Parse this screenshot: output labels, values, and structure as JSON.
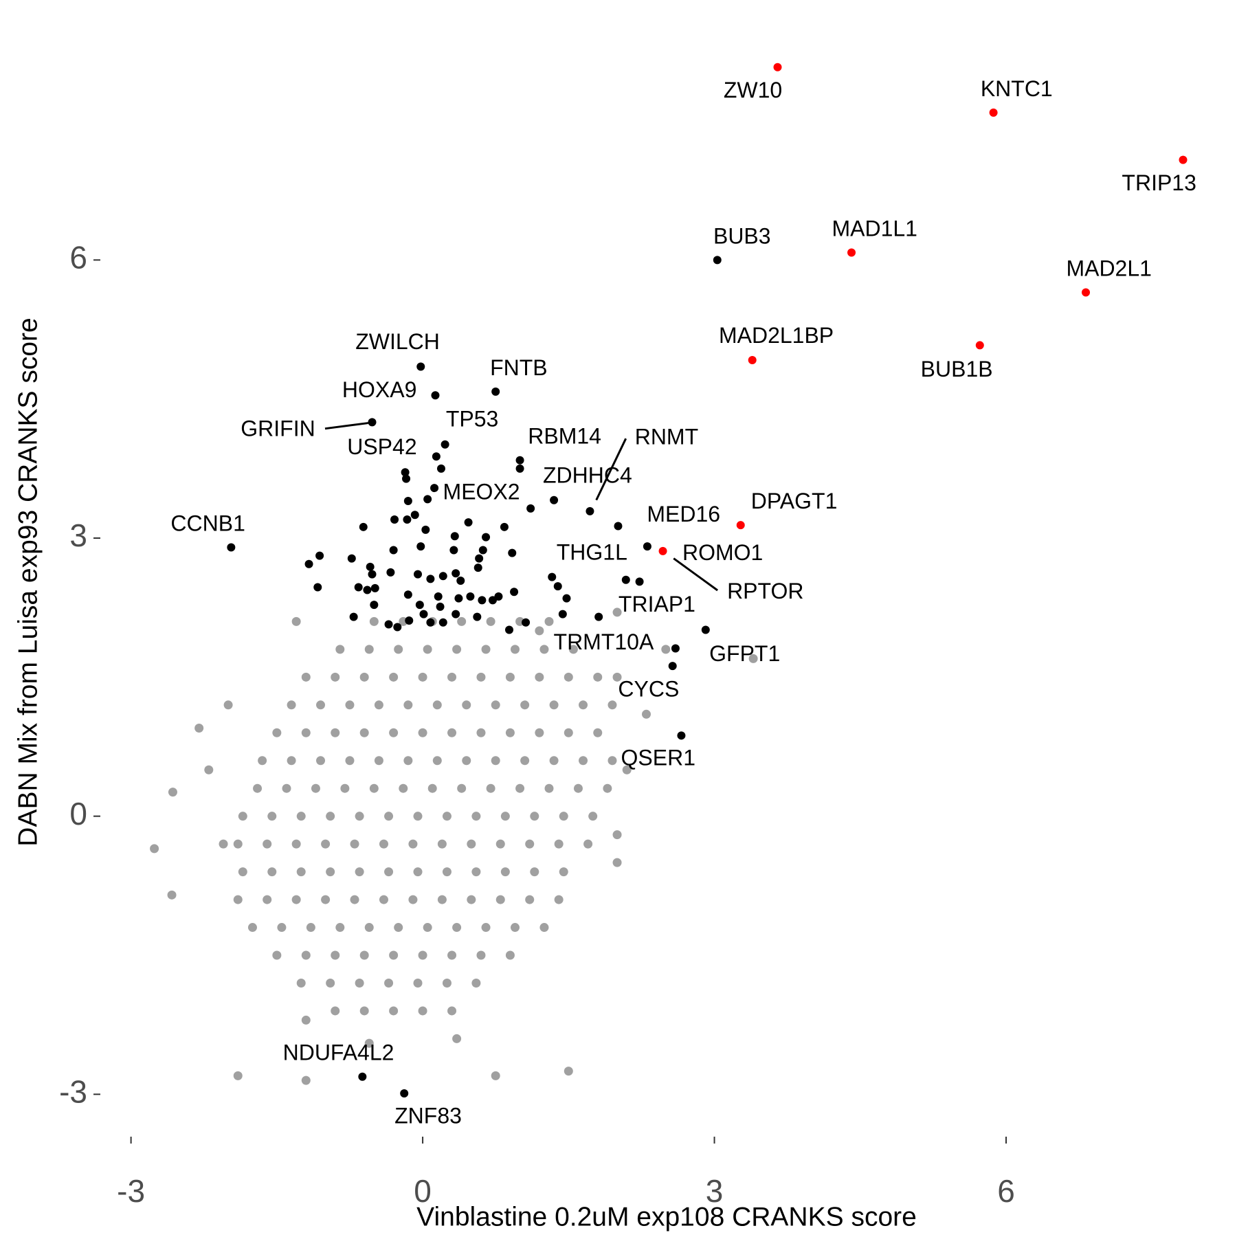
{
  "chart_data": {
    "type": "scatter",
    "xlabel": "Vinblastine 0.2uM exp108 CRANKS score",
    "ylabel": "DABN Mix from Luisa exp93 CRANKS score",
    "xlim": [
      -3.28,
      8.29
    ],
    "ylim": [
      -3.42,
      8.46
    ],
    "xticks": [
      -3,
      0,
      3,
      6
    ],
    "yticks": [
      -3,
      0,
      3,
      6
    ],
    "series": [
      {
        "color": "#a0a0a0",
        "x": [
          -0.5,
          -0.2,
          0.1,
          0.4,
          0.7,
          1.0,
          1.3,
          -0.85,
          -0.55,
          -0.25,
          0.05,
          0.35,
          0.65,
          0.95,
          1.25,
          1.55,
          -1.2,
          -0.9,
          -0.6,
          -0.3,
          0,
          0.3,
          0.6,
          0.9,
          1.2,
          1.5,
          1.8,
          -1.35,
          -1.05,
          -0.75,
          -0.45,
          -0.15,
          0.15,
          0.45,
          0.75,
          1.05,
          1.35,
          1.65,
          1.95,
          -1.5,
          -1.2,
          -0.9,
          -0.6,
          -0.3,
          0,
          0.3,
          0.6,
          0.9,
          1.2,
          1.5,
          1.8,
          -1.65,
          -1.35,
          -1.05,
          -0.75,
          -0.45,
          -0.15,
          0.15,
          0.45,
          0.75,
          1.05,
          1.35,
          1.65,
          1.95,
          -1.7,
          -1.4,
          -1.1,
          -0.8,
          -0.5,
          -0.2,
          0.1,
          0.4,
          0.7,
          1.0,
          1.3,
          1.6,
          1.9,
          -1.85,
          -1.55,
          -1.25,
          -0.95,
          -0.65,
          -0.35,
          -0.05,
          0.25,
          0.55,
          0.85,
          1.15,
          1.45,
          1.75,
          -1.9,
          -1.6,
          -1.3,
          -1.0,
          -0.7,
          -0.4,
          -0.1,
          0.2,
          0.5,
          0.8,
          1.1,
          1.4,
          1.7,
          -1.85,
          -1.55,
          -1.25,
          -0.95,
          -0.65,
          -0.35,
          -0.05,
          0.25,
          0.55,
          0.85,
          1.15,
          1.45,
          -1.9,
          -1.6,
          -1.3,
          -1.0,
          -0.7,
          -0.4,
          -0.1,
          0.2,
          0.5,
          0.8,
          1.1,
          1.4,
          -1.75,
          -1.45,
          -1.15,
          -0.85,
          -0.55,
          -0.25,
          0.05,
          0.35,
          0.65,
          0.95,
          1.25,
          -1.5,
          -1.2,
          -0.9,
          -0.6,
          -0.3,
          0,
          0.3,
          0.6,
          0.9,
          -1.25,
          -0.95,
          -0.65,
          -0.35,
          -0.05,
          0.25,
          0.55,
          -0.9,
          -0.6,
          -0.3,
          0,
          0.3,
          -2.76,
          -2.58,
          -2.57,
          -2.3,
          -2.2,
          -1.9,
          -1.2,
          0.75,
          1.5,
          -0.55,
          0.35,
          -1.2,
          2.0,
          2.5,
          2.3,
          3.4,
          2.0,
          -1.3,
          2.0,
          2.0,
          -2.0,
          -2.05,
          1.2,
          2.1
        ],
        "y": [
          2.1,
          2.1,
          2.1,
          2.1,
          2.1,
          2.1,
          2.1,
          1.8,
          1.8,
          1.8,
          1.8,
          1.8,
          1.8,
          1.8,
          1.8,
          1.8,
          1.5,
          1.5,
          1.5,
          1.5,
          1.5,
          1.5,
          1.5,
          1.5,
          1.5,
          1.5,
          1.5,
          1.2,
          1.2,
          1.2,
          1.2,
          1.2,
          1.2,
          1.2,
          1.2,
          1.2,
          1.2,
          1.2,
          1.2,
          0.9,
          0.9,
          0.9,
          0.9,
          0.9,
          0.9,
          0.9,
          0.9,
          0.9,
          0.9,
          0.9,
          0.9,
          0.6,
          0.6,
          0.6,
          0.6,
          0.6,
          0.6,
          0.6,
          0.6,
          0.6,
          0.6,
          0.6,
          0.6,
          0.6,
          0.3,
          0.3,
          0.3,
          0.3,
          0.3,
          0.3,
          0.3,
          0.3,
          0.3,
          0.3,
          0.3,
          0.3,
          0.3,
          0,
          0,
          0,
          0,
          0,
          0,
          0,
          0,
          0,
          0,
          0,
          0,
          0,
          -0.3,
          -0.3,
          -0.3,
          -0.3,
          -0.3,
          -0.3,
          -0.3,
          -0.3,
          -0.3,
          -0.3,
          -0.3,
          -0.3,
          -0.3,
          -0.6,
          -0.6,
          -0.6,
          -0.6,
          -0.6,
          -0.6,
          -0.6,
          -0.6,
          -0.6,
          -0.6,
          -0.6,
          -0.6,
          -0.9,
          -0.9,
          -0.9,
          -0.9,
          -0.9,
          -0.9,
          -0.9,
          -0.9,
          -0.9,
          -0.9,
          -0.9,
          -0.9,
          -1.2,
          -1.2,
          -1.2,
          -1.2,
          -1.2,
          -1.2,
          -1.2,
          -1.2,
          -1.2,
          -1.2,
          -1.2,
          -1.5,
          -1.5,
          -1.5,
          -1.5,
          -1.5,
          -1.5,
          -1.5,
          -1.5,
          -1.5,
          -1.8,
          -1.8,
          -1.8,
          -1.8,
          -1.8,
          -1.8,
          -1.8,
          -2.1,
          -2.1,
          -2.1,
          -2.1,
          -2.1,
          -0.35,
          -0.85,
          0.26,
          0.95,
          0.5,
          -2.8,
          -2.85,
          -2.8,
          -2.75,
          -2.45,
          -2.4,
          -2.2,
          2.2,
          1.8,
          1.1,
          1.7,
          1.5,
          2.1,
          -0.2,
          -0.5,
          1.2,
          -0.3,
          2.0,
          0.5
        ]
      },
      {
        "color": "#000000",
        "labels": [
          "BUB3",
          "ZWILCH",
          "HOXA9",
          "FNTB",
          "GRIFIN",
          "TP53",
          "USP42",
          "RBM14",
          "RNMT",
          "ZDHHC4",
          "MEOX2",
          "CCNB1",
          "MED16",
          "RPTOR",
          "THG1L",
          "TRIAP1",
          "TRMT10A",
          "GFPT1",
          "CYCS",
          "QSER1",
          "NDUFA4L2",
          "ZNF83",
          null,
          null,
          null,
          null,
          null,
          null,
          null,
          null,
          null,
          null,
          null,
          null,
          null,
          null,
          null,
          null,
          null,
          null,
          null,
          null,
          null,
          null,
          null,
          null,
          null,
          null,
          null,
          null,
          null,
          null,
          null,
          null,
          null,
          null,
          null,
          null,
          null,
          null,
          null,
          null,
          null,
          null,
          null,
          null,
          null,
          null,
          null,
          null,
          null,
          null,
          null,
          null,
          null,
          null,
          null,
          null,
          null,
          null,
          null
        ],
        "x": [
          3.03,
          -0.02,
          0.13,
          0.75,
          -0.52,
          0.23,
          0.14,
          1.0,
          1.72,
          1.35,
          0.12,
          -1.97,
          2.01,
          2.31,
          1.33,
          1.81,
          2.6,
          2.91,
          2.57,
          2.66,
          -0.62,
          -0.19,
          -0.18,
          -0.17,
          0.05,
          -0.15,
          -0.29,
          -0.16,
          -0.61,
          0.03,
          0.33,
          0.47,
          0.84,
          0.65,
          0.62,
          0.92,
          -1.06,
          -1.17,
          -0.73,
          -0.3,
          -0.02,
          0.32,
          -0.33,
          -0.54,
          -0.52,
          -0.05,
          0.08,
          0.21,
          0.34,
          0.39,
          0.57,
          0.58,
          -1.08,
          -0.66,
          -0.57,
          -0.49,
          -0.15,
          -0.03,
          0.16,
          0.18,
          0.37,
          0.49,
          0.61,
          0.72,
          0.78,
          0.94,
          -0.5,
          -0.71,
          -0.35,
          -0.26,
          -0.14,
          0.01,
          0.08,
          0.21,
          0.34,
          0.56,
          0.89,
          1.06,
          1.44,
          1.39,
          1.48,
          2.09,
          2.23,
          1.0,
          1.11,
          0.19,
          -0.08
        ],
        "y": [
          6.0,
          4.85,
          4.54,
          4.58,
          4.25,
          4.01,
          3.88,
          3.84,
          3.29,
          3.41,
          3.54,
          2.9,
          3.13,
          2.91,
          2.58,
          2.15,
          1.81,
          2.01,
          1.62,
          0.87,
          -2.81,
          -2.99,
          3.71,
          3.64,
          3.42,
          3.4,
          3.2,
          3.2,
          3.12,
          3.09,
          3.02,
          3.17,
          3.12,
          3.01,
          2.87,
          2.84,
          2.81,
          2.72,
          2.78,
          2.87,
          2.91,
          2.87,
          2.63,
          2.69,
          2.61,
          2.61,
          2.56,
          2.59,
          2.62,
          2.54,
          2.68,
          2.78,
          2.47,
          2.47,
          2.44,
          2.46,
          2.39,
          2.28,
          2.37,
          2.26,
          2.35,
          2.37,
          2.33,
          2.33,
          2.37,
          2.42,
          2.28,
          2.15,
          2.07,
          2.04,
          2.11,
          2.18,
          2.09,
          2.09,
          2.18,
          2.15,
          2.01,
          2.09,
          2.18,
          2.48,
          2.35,
          2.55,
          2.53,
          3.75,
          3.32,
          3.75,
          3.25
        ]
      },
      {
        "color": "#ff0000",
        "labels": [
          "ZW10",
          "KNTC1",
          "TRIP13",
          "MAD1L1",
          "MAD2L1",
          "BUB1B",
          "MAD2L1BP",
          "DPAGT1",
          "ROMO1"
        ],
        "x": [
          3.65,
          5.87,
          7.82,
          4.41,
          6.82,
          5.73,
          3.39,
          3.27,
          2.47
        ],
        "y": [
          8.08,
          7.59,
          7.08,
          6.08,
          5.65,
          5.08,
          4.92,
          3.14,
          2.86
        ]
      }
    ]
  }
}
